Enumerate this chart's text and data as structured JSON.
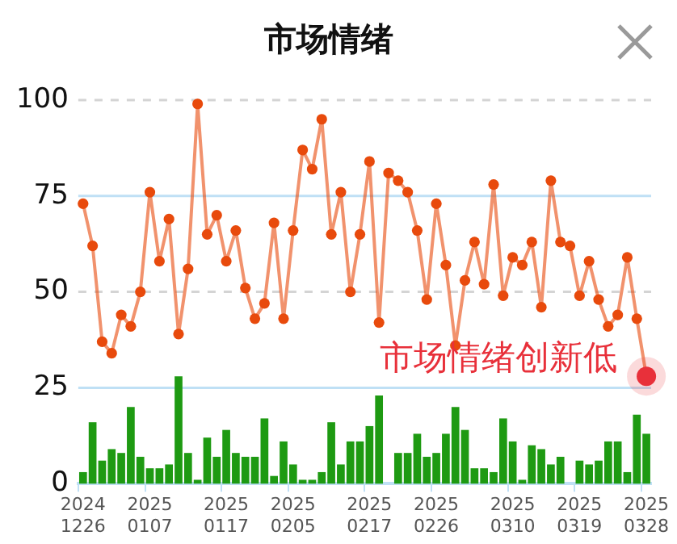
{
  "chart_data": {
    "type": "bar",
    "title": "市场情绪",
    "categories": [
      "2024\n1226",
      null,
      null,
      null,
      null,
      null,
      null,
      "2025\n0107",
      null,
      null,
      null,
      null,
      null,
      null,
      null,
      "2025\n0117",
      null,
      null,
      null,
      null,
      null,
      null,
      "2025\n0205",
      null,
      null,
      null,
      null,
      null,
      null,
      null,
      "2025\n0217",
      null,
      null,
      null,
      null,
      null,
      null,
      "2025\n0226",
      null,
      null,
      null,
      null,
      null,
      null,
      null,
      "2025\n0310",
      null,
      null,
      null,
      null,
      null,
      null,
      "2025\n0319",
      null,
      null,
      null,
      null,
      null,
      null,
      "2025\n0328"
    ],
    "series": [
      {
        "color": "#1e9a12",
        "values": [
          3,
          16,
          6,
          9,
          8,
          20,
          7,
          4,
          4,
          5,
          28,
          8,
          1,
          12,
          7,
          14,
          8,
          7,
          7,
          17,
          2,
          11,
          5,
          1,
          1,
          3,
          16,
          5,
          11,
          11,
          15,
          23,
          0,
          8,
          8,
          13,
          7,
          8,
          13,
          20,
          14,
          4,
          4,
          3,
          17,
          11,
          1,
          10,
          9,
          5,
          7,
          0,
          6,
          5,
          6,
          11,
          11,
          3,
          18,
          13
        ]
      },
      {
        "type": "line",
        "color": "#e84a0c",
        "values": [
          73,
          62,
          37,
          34,
          44,
          41,
          50,
          76,
          58,
          69,
          39,
          56,
          99,
          65,
          70,
          58,
          66,
          51,
          43,
          47,
          68,
          43,
          66,
          87,
          82,
          95,
          65,
          76,
          50,
          65,
          84,
          42,
          81,
          79,
          76,
          66,
          48,
          73,
          57,
          36,
          53,
          63,
          52,
          78,
          49,
          59,
          57,
          63,
          46,
          79,
          63,
          62,
          49,
          58,
          48,
          41,
          44,
          59,
          43,
          28
        ]
      }
    ],
    "ylim": [
      0,
      100
    ],
    "yticks": [
      0,
      25,
      50,
      75,
      100
    ],
    "marker": "circle",
    "ref_lines": [
      {
        "axis": "y",
        "value": 25,
        "color": "#bfe0f5"
      },
      {
        "axis": "y",
        "value": 75,
        "color": "#bfe0f5"
      },
      {
        "axis": "y",
        "value": 50,
        "color": "#d4d4d4",
        "line_style": "dashed"
      },
      {
        "axis": "y",
        "value": 100,
        "color": "#d4d4d4",
        "line_style": "dashed"
      }
    ],
    "annotations": [
      {
        "text": "市场情绪创新低",
        "x": "2025\n0328",
        "y": 28
      }
    ]
  }
}
